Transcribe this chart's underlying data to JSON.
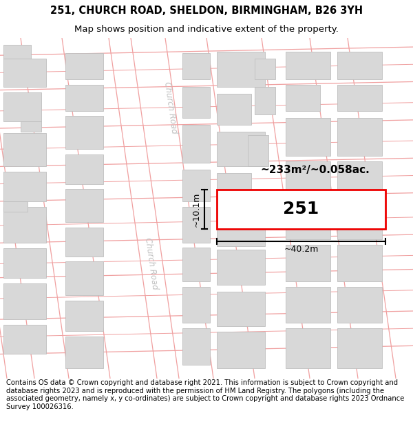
{
  "title_line1": "251, CHURCH ROAD, SHELDON, BIRMINGHAM, B26 3YH",
  "title_line2": "Map shows position and indicative extent of the property.",
  "footer_text": "Contains OS data © Crown copyright and database right 2021. This information is subject to Crown copyright and database rights 2023 and is reproduced with the permission of HM Land Registry. The polygons (including the associated geometry, namely x, y co-ordinates) are subject to Crown copyright and database rights 2023 Ordnance Survey 100026316.",
  "bg_color": "#ffffff",
  "map_bg": "#ffffff",
  "building_color": "#d8d8d8",
  "building_edge": "#bebebe",
  "road_line_color": "#f0a0a0",
  "property_color": "#ee0000",
  "property_fill": "#ffffff",
  "label_251": "251",
  "area_label": "~233m²/~0.058ac.",
  "dim_width": "~40.2m",
  "dim_height": "~10.1m",
  "church_road_label": "Church Road",
  "title_fontsize": 10.5,
  "subtitle_fontsize": 9.5,
  "footer_fontsize": 7.2
}
